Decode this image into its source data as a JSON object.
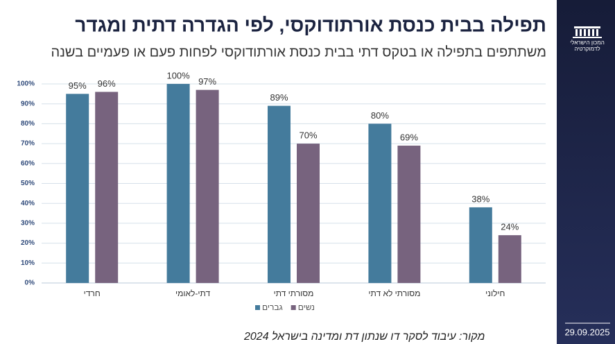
{
  "chart_data": {
    "type": "bar",
    "title": "תפילה בבית כנסת אורתודוקסי, לפי הגדרה דתית ומגדר",
    "subtitle": "משתתפים בתפילה או בטקס דתי בבית כנסת אורתודוקסי לפחות פעם או פעמיים בשנה",
    "categories": [
      "חרדי",
      "דתי-לאומי",
      "מסורתי דתי",
      "מסורתי לא דתי",
      "חילוני"
    ],
    "series": [
      {
        "name": "גברים",
        "color": "#447b9c",
        "values": [
          95,
          100,
          89,
          80,
          38
        ],
        "value_labels": [
          "95%",
          "100%",
          "89%",
          "80%",
          "38%"
        ]
      },
      {
        "name": "נשים",
        "color": "#77637e",
        "values": [
          96,
          97,
          70,
          69,
          24
        ],
        "value_labels": [
          "96%",
          "97%",
          "70%",
          "69%",
          "24%"
        ]
      }
    ],
    "ylim": [
      0,
      100
    ],
    "yticks": [
      {
        "value": 0,
        "label": "0%"
      },
      {
        "value": 10,
        "label": "10%"
      },
      {
        "value": 20,
        "label": "20%"
      },
      {
        "value": 30,
        "label": "30%"
      },
      {
        "value": 40,
        "label": "40%"
      },
      {
        "value": 50,
        "label": "50%"
      },
      {
        "value": 60,
        "label": "60%"
      },
      {
        "value": 70,
        "label": "70%"
      },
      {
        "value": 80,
        "label": "80%"
      },
      {
        "value": 90,
        "label": "90%"
      },
      {
        "value": 100,
        "label": "100%"
      }
    ],
    "grid": true,
    "legend": "bottom"
  },
  "source": "מקור: עיבוד לסקר דו שנתון דת ומדינה בישראל 2024",
  "sidebar": {
    "logo_lines": [
      "המכון הישראלי",
      "לדמוקרטיה"
    ],
    "date": "29.09.2025"
  }
}
